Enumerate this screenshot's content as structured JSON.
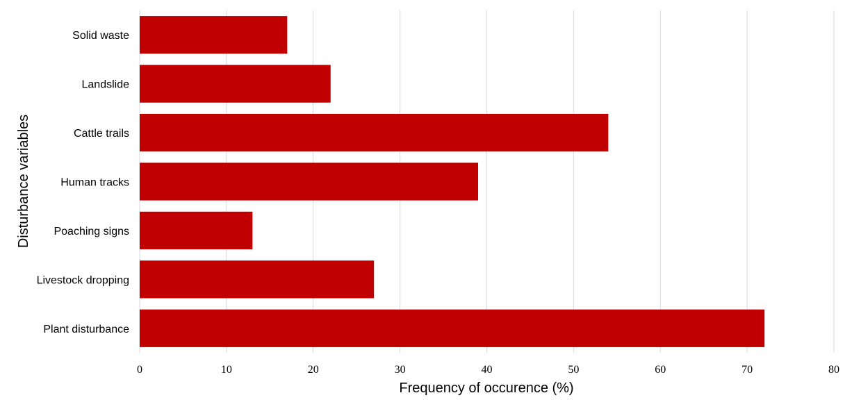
{
  "chart_data": {
    "type": "bar",
    "orientation": "horizontal",
    "categories": [
      "Solid waste",
      "Landslide",
      "Cattle trails",
      "Human tracks",
      "Poaching signs",
      "Livestock dropping",
      "Plant disturbance"
    ],
    "values": [
      17,
      22,
      54,
      39,
      13,
      27,
      72
    ],
    "xlabel": "Frequency of occurence (%)",
    "ylabel": "Disturbance variables",
    "xlim": [
      0,
      80
    ],
    "xticks": [
      0,
      10,
      20,
      30,
      40,
      50,
      60,
      70,
      80
    ],
    "grid": "vertical",
    "legend": "none",
    "bar_color": "#c00000"
  }
}
